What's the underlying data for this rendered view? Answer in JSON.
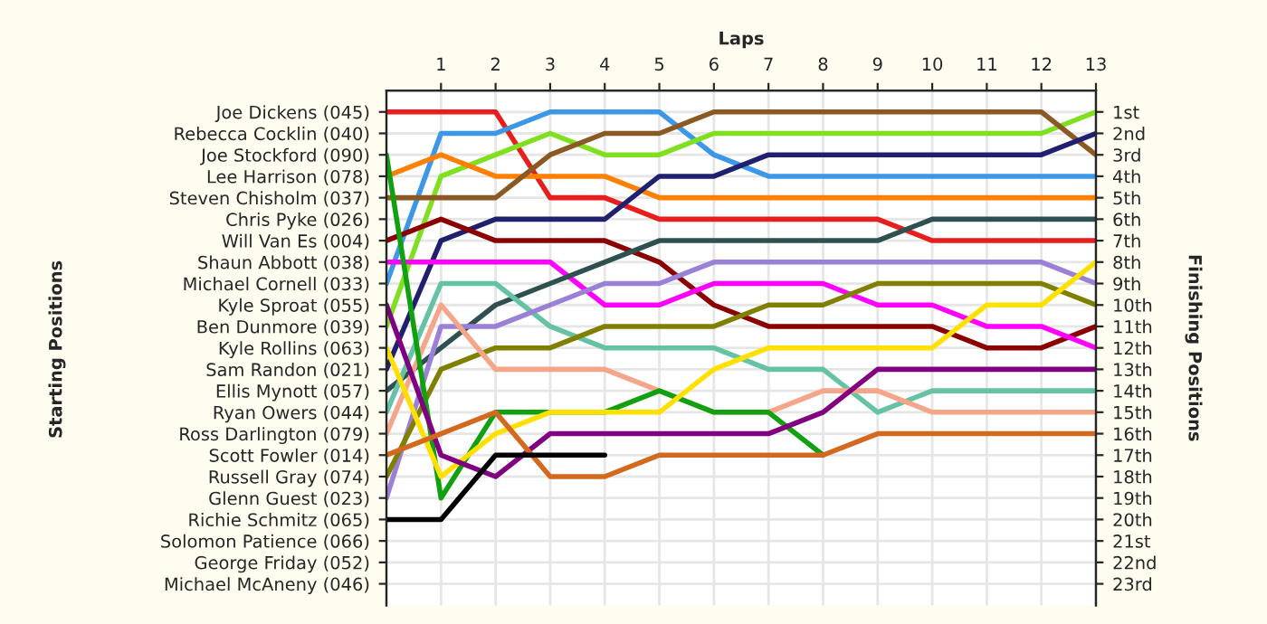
{
  "chart_data": {
    "type": "line",
    "xlabel": "Laps",
    "ylabel": "Finishing Positions",
    "annotations": [
      "Starting Positions"
    ],
    "x": [
      0,
      1,
      2,
      3,
      4,
      5,
      6,
      7,
      8,
      9,
      10,
      11,
      12,
      13
    ],
    "xlim": [
      0,
      13
    ],
    "xticks": [
      1,
      2,
      3,
      4,
      5,
      6,
      7,
      8,
      9,
      10,
      11,
      12,
      13
    ],
    "y_categories": [
      "Joe Dickens (045)",
      "Rebecca Cocklin (040)",
      "Joe Stockford (090)",
      "Lee Harrison (078)",
      "Steven Chisholm (037)",
      "Chris Pyke (026)",
      "Will Van Es (004)",
      "Shaun Abbott (038)",
      "Michael Cornell (033)",
      "Kyle Sproat (055)",
      "Ben Dunmore (039)",
      "Kyle Rollins (063)",
      "Sam Randon (021)",
      "Ellis Mynott (057)",
      "Ryan Owers (044)",
      "Ross Darlington (079)",
      "Scott Fowler (014)",
      "Russell Gray (074)",
      "Glenn Guest (023)",
      "Richie Schmitz (065)",
      "Solomon Patience (066)",
      "George Friday (052)",
      "Michael McAneny (046)"
    ],
    "ylim": [
      24,
      0
    ],
    "yticks": [
      {
        "value": 1,
        "label": "1st"
      },
      {
        "value": 2,
        "label": "2nd"
      },
      {
        "value": 3,
        "label": "3rd"
      },
      {
        "value": 4,
        "label": "4th"
      },
      {
        "value": 5,
        "label": "5th"
      },
      {
        "value": 6,
        "label": "6th"
      },
      {
        "value": 7,
        "label": "7th"
      },
      {
        "value": 8,
        "label": "8th"
      },
      {
        "value": 9,
        "label": "9th"
      },
      {
        "value": 10,
        "label": "10th"
      },
      {
        "value": 11,
        "label": "11th"
      },
      {
        "value": 12,
        "label": "12th"
      },
      {
        "value": 13,
        "label": "13th"
      },
      {
        "value": 14,
        "label": "14th"
      },
      {
        "value": 15,
        "label": "15th"
      },
      {
        "value": 16,
        "label": "16th"
      },
      {
        "value": 17,
        "label": "17th"
      },
      {
        "value": 18,
        "label": "18th"
      },
      {
        "value": 19,
        "label": "19th"
      },
      {
        "value": 20,
        "label": "20th"
      },
      {
        "value": 21,
        "label": "21st"
      },
      {
        "value": 22,
        "label": "22nd"
      },
      {
        "value": 23,
        "label": "23rd"
      }
    ],
    "grid": true,
    "marker": "none",
    "line_style": "solid",
    "series": [
      {
        "color": "#e81e1e",
        "values": [
          1,
          1,
          1,
          5,
          5,
          6,
          6,
          6,
          6,
          6,
          7,
          7,
          7,
          7
        ]
      },
      {
        "color": "#3d97e8",
        "values": [
          9,
          2,
          2,
          1,
          1,
          1,
          3,
          4,
          4,
          4,
          4,
          4,
          4,
          4
        ]
      },
      {
        "color": "#80e020",
        "values": [
          11,
          4,
          3,
          2,
          3,
          3,
          2,
          2,
          2,
          2,
          2,
          2,
          2,
          1
        ]
      },
      {
        "color": "#ff8000",
        "values": [
          4,
          3,
          4,
          4,
          4,
          5,
          5,
          5,
          5,
          5,
          5,
          5,
          5,
          5
        ]
      },
      {
        "color": "#8b5a24",
        "values": [
          5,
          5,
          5,
          3,
          2,
          2,
          1,
          1,
          1,
          1,
          1,
          1,
          1,
          3
        ]
      },
      {
        "color": "#20206e",
        "values": [
          13,
          7,
          6,
          6,
          6,
          4,
          4,
          3,
          3,
          3,
          3,
          3,
          3,
          2
        ]
      },
      {
        "color": "#8b0000",
        "values": [
          7,
          6,
          7,
          7,
          7,
          8,
          10,
          11,
          11,
          11,
          11,
          12,
          12,
          11
        ]
      },
      {
        "color": "#ff00ff",
        "values": [
          8,
          8,
          8,
          8,
          10,
          10,
          9,
          9,
          9,
          10,
          10,
          11,
          11,
          12
        ]
      },
      {
        "color": "#2f5050",
        "values": [
          14,
          12,
          10,
          9,
          8,
          7,
          7,
          7,
          7,
          7,
          6,
          6,
          6,
          6
        ]
      },
      {
        "color": "#66c2a5",
        "values": [
          15,
          9,
          9,
          11,
          12,
          12,
          12,
          13,
          13,
          15,
          14,
          14,
          14,
          14
        ]
      },
      {
        "color": "#9b80d8",
        "values": [
          19,
          11,
          11,
          10,
          9,
          9,
          8,
          8,
          8,
          8,
          8,
          8,
          8,
          9
        ]
      },
      {
        "color": "#808000",
        "values": [
          18,
          13,
          12,
          12,
          11,
          11,
          11,
          10,
          10,
          9,
          9,
          9,
          9,
          10
        ]
      },
      {
        "color": "#f4a58a",
        "values": [
          16,
          10,
          13,
          13,
          13,
          14,
          15,
          15,
          14,
          14,
          15,
          15,
          15,
          15
        ]
      },
      {
        "color": "#10a010",
        "values": [
          3,
          19,
          15,
          15,
          15,
          14,
          15,
          15,
          17,
          null,
          null,
          null,
          null,
          null
        ]
      },
      {
        "color": "#ffe000",
        "values": [
          12,
          18,
          16,
          15,
          15,
          15,
          13,
          12,
          12,
          12,
          12,
          10,
          10,
          8
        ]
      },
      {
        "color": "#800080",
        "values": [
          10,
          17,
          18,
          16,
          16,
          16,
          16,
          16,
          15,
          13,
          13,
          13,
          13,
          13
        ]
      },
      {
        "color": "#d2691e",
        "values": [
          17,
          16,
          15,
          18,
          18,
          17,
          17,
          17,
          17,
          16,
          16,
          16,
          16,
          16
        ]
      },
      {
        "color": "#000000",
        "values": [
          20,
          20,
          17,
          17,
          17,
          null,
          null,
          null,
          null,
          null,
          null,
          null,
          null,
          null
        ]
      }
    ]
  }
}
